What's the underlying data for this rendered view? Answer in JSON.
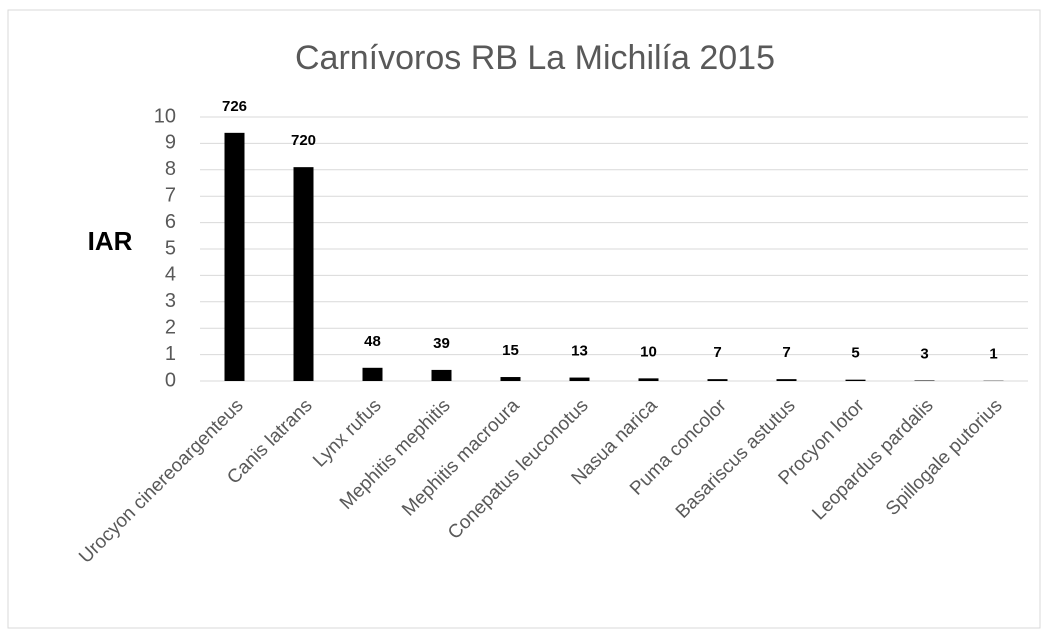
{
  "chart_data": {
    "type": "bar",
    "title": "Carnívoros RB La Michilía 2015",
    "y_label": "IAR",
    "categories": [
      "Urocyon cinereoargenteus",
      "Canis latrans",
      "Lynx rufus",
      "Mephitis mephitis",
      "Mephitis macroura",
      "Conepatus leuconotus",
      "Nasua narica",
      "Puma concolor",
      "Basariscus astutus",
      "Procyon lotor",
      "Leopardus pardalis",
      "Spillogale putorius"
    ],
    "values": [
      9.4,
      8.1,
      0.5,
      0.42,
      0.15,
      0.13,
      0.1,
      0.07,
      0.07,
      0.05,
      0.02,
      0.01
    ],
    "data_labels": [
      726,
      720,
      48,
      39,
      15,
      13,
      10,
      7,
      7,
      5,
      3,
      1
    ],
    "color": "#000000",
    "ylim": [
      0,
      10
    ],
    "yticks": [
      0,
      1,
      2,
      3,
      4,
      5,
      6,
      7,
      8,
      9,
      10
    ],
    "grid": true
  }
}
